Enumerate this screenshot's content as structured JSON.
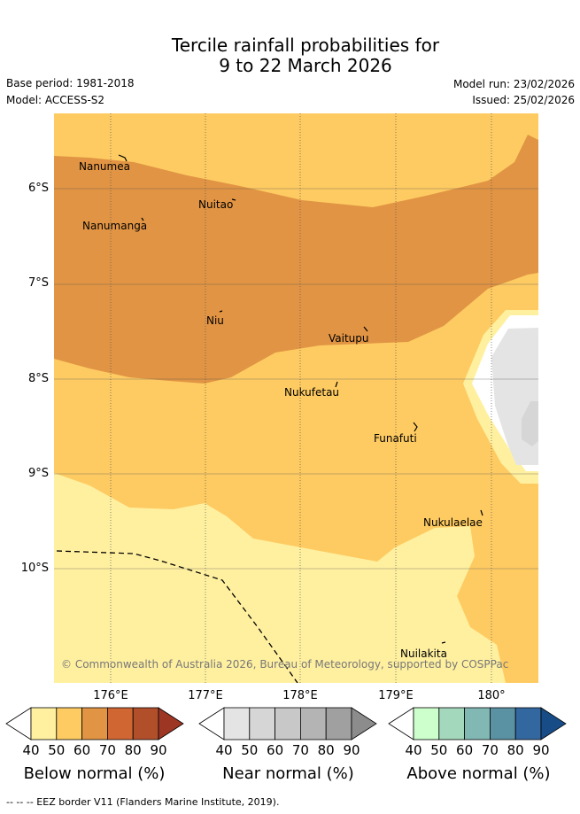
{
  "title_line1": "Tercile rainfall probabilities for",
  "title_line2": "9 to 22 March 2026",
  "base_period": "Base period: 1981-2018",
  "model": "Model: ACCESS-S2",
  "model_run": "Model run: 23/02/2026",
  "issued": "Issued: 25/02/2026",
  "lat_labels": [
    "6°S",
    "7°S",
    "8°S",
    "9°S",
    "10°S"
  ],
  "lon_labels": [
    "176°E",
    "177°E",
    "178°E",
    "179°E",
    "180°"
  ],
  "places": [
    "Nanumea",
    "Nuitao",
    "Nanumanga",
    "Niu",
    "Vaitupu",
    "Nukufetau",
    "Funafuti",
    "Nukulaelae",
    "Nuilakita"
  ],
  "copyright": "© Commonwealth of Australia 2026, Bureau of Meteorology, supported by COSPPac",
  "colorbars": [
    {
      "title": "Below normal (%)",
      "ticks": [
        "40",
        "50",
        "60",
        "70",
        "80",
        "90"
      ],
      "colors": [
        "#ffffff",
        "#fff0a0",
        "#fecb62",
        "#e19443",
        "#d06732",
        "#b24f2b",
        "#9e3624"
      ]
    },
    {
      "title": "Near normal (%)",
      "ticks": [
        "40",
        "50",
        "60",
        "70",
        "80",
        "90"
      ],
      "colors": [
        "#ffffff",
        "#e4e4e4",
        "#d6d6d6",
        "#c8c8c8",
        "#b4b4b4",
        "#a0a0a0",
        "#8c8c8c"
      ]
    },
    {
      "title": "Above normal (%)",
      "ticks": [
        "40",
        "50",
        "60",
        "70",
        "80",
        "90"
      ],
      "colors": [
        "#ffffff",
        "#ccffcc",
        "#a4d8bd",
        "#82b8b3",
        "#5a91a3",
        "#33679f",
        "#174c86"
      ]
    }
  ],
  "legend_footer": "-- -- -- EEZ border V11 (Flanders Marine Institute, 2019)."
}
